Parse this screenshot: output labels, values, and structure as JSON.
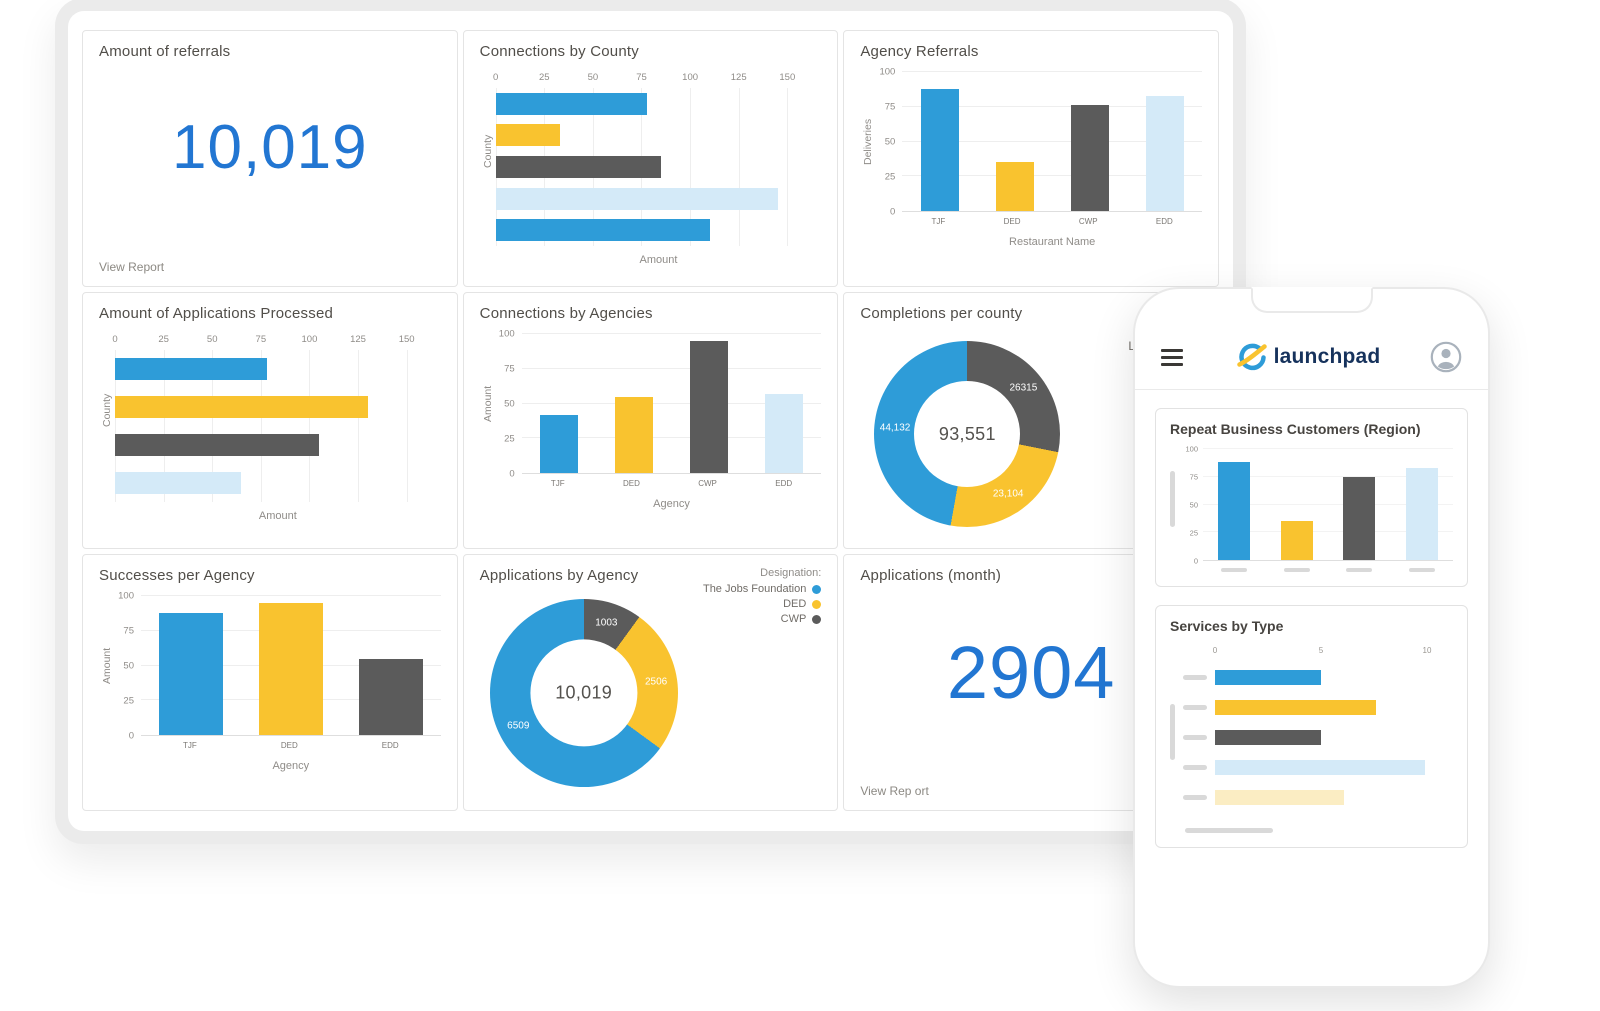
{
  "palette": {
    "blue": "#2E9CD8",
    "yellow": "#F9C32F",
    "gray": "#5B5B5B",
    "light_blue": "#D4EAF8",
    "light_yellow": "#FBEDC3",
    "metric_blue": "#2276D2",
    "brand_navy": "#16325C",
    "placeholder_gray": "#D9D9D9"
  },
  "dashboard": {
    "cards": {
      "referrals": {
        "title": "Amount of referrals",
        "value": "10,019",
        "link_label": "View Report"
      },
      "connections_by_county": {
        "title": "Connections by County",
        "chart": {
          "type": "hbar",
          "xlabel": "Amount",
          "ylabel": "County",
          "grid": true,
          "xticks": [
            0,
            25,
            50,
            75,
            100,
            125,
            150
          ],
          "xmax": 150,
          "bars": [
            {
              "value": 78,
              "color": "blue"
            },
            {
              "value": 33,
              "color": "yellow"
            },
            {
              "value": 85,
              "color": "gray"
            },
            {
              "value": 145,
              "color": "light_blue"
            },
            {
              "value": 110,
              "color": "blue"
            }
          ]
        }
      },
      "agency_referrals": {
        "title": "Agency Referrals",
        "chart": {
          "type": "vbar",
          "xlabel": "Restaurant Name",
          "ylabel": "Deliveries",
          "yticks": [
            0,
            25,
            50,
            75,
            100
          ],
          "ymax": 100,
          "bars": [
            {
              "label": "TJF",
              "value": 88,
              "color": "blue"
            },
            {
              "label": "DED",
              "value": 35,
              "color": "yellow"
            },
            {
              "label": "CWP",
              "value": 76,
              "color": "gray"
            },
            {
              "label": "EDD",
              "value": 83,
              "color": "light_blue"
            }
          ]
        }
      },
      "applications_processed": {
        "title": "Amount of Applications Processed",
        "chart": {
          "type": "hbar",
          "xlabel": "Amount",
          "ylabel": "County",
          "grid": true,
          "xticks": [
            0,
            25,
            50,
            75,
            100,
            125,
            150
          ],
          "xmax": 150,
          "bars": [
            {
              "value": 78,
              "color": "blue"
            },
            {
              "value": 130,
              "color": "yellow"
            },
            {
              "value": 105,
              "color": "gray"
            },
            {
              "value": 65,
              "color": "light_blue"
            }
          ]
        }
      },
      "connections_by_agencies": {
        "title": "Connections by Agencies",
        "chart": {
          "type": "vbar",
          "xlabel": "Agency",
          "ylabel": "Amount",
          "yticks": [
            0,
            25,
            50,
            75,
            100
          ],
          "ymax": 100,
          "bars": [
            {
              "label": "TJF",
              "value": 42,
              "color": "blue"
            },
            {
              "label": "DED",
              "value": 55,
              "color": "yellow"
            },
            {
              "label": "CWP",
              "value": 95,
              "color": "gray"
            },
            {
              "label": "EDD",
              "value": 57,
              "color": "light_blue"
            }
          ]
        }
      },
      "completions_per_county": {
        "title": "Completions per county",
        "partial_text": "L",
        "chart": {
          "type": "donut",
          "center": "93,551",
          "segments": [
            {
              "label": "26315",
              "value": 26315,
              "color": "gray"
            },
            {
              "label": "23,104",
              "value": 23104,
              "color": "yellow"
            },
            {
              "label": "44,132",
              "value": 44132,
              "color": "blue"
            }
          ]
        }
      },
      "successes_per_agency": {
        "title": "Successes per Agency",
        "chart": {
          "type": "vbar",
          "xlabel": "Agency",
          "ylabel": "Amount",
          "yticks": [
            0,
            25,
            50,
            75,
            100
          ],
          "ymax": 100,
          "bars": [
            {
              "label": "TJF",
              "value": 88,
              "color": "blue"
            },
            {
              "label": "DED",
              "value": 95,
              "color": "yellow"
            },
            {
              "label": "EDD",
              "value": 55,
              "color": "gray"
            }
          ]
        }
      },
      "applications_by_agency": {
        "title": "Applications by Agency",
        "legend": {
          "title": "Designation:",
          "items": [
            {
              "label": "The Jobs Foundation",
              "color": "blue"
            },
            {
              "label": "DED",
              "color": "yellow"
            },
            {
              "label": "CWP",
              "color": "gray"
            }
          ]
        },
        "chart": {
          "type": "donut",
          "center": "10,019",
          "segments": [
            {
              "label": "1003",
              "value": 1003,
              "color": "gray"
            },
            {
              "label": "2506",
              "value": 2506,
              "color": "yellow"
            },
            {
              "label": "6509",
              "value": 6509,
              "color": "blue"
            }
          ]
        }
      },
      "applications_month": {
        "title": "Applications (month)",
        "value": "2904",
        "link_label": "View Rep ort"
      }
    }
  },
  "phone": {
    "logo_text": "launchpad",
    "cards": [
      {
        "title": "Repeat Business Customers (Region)",
        "chart": {
          "type": "vbar",
          "yticks": [
            0,
            25,
            50,
            75,
            100
          ],
          "ymax": 100,
          "placeholder_labels": true,
          "placeholder_ylabel": true,
          "bars": [
            {
              "value": 88,
              "color": "blue"
            },
            {
              "value": 35,
              "color": "yellow"
            },
            {
              "value": 75,
              "color": "gray"
            },
            {
              "value": 83,
              "color": "light_blue"
            }
          ]
        }
      },
      {
        "title": "Services by Type",
        "chart": {
          "type": "hbar",
          "xticks": [
            0,
            5,
            10
          ],
          "xmax": 10,
          "grid": false,
          "placeholder_labels": true,
          "placeholder_ylabel": true,
          "placeholder_xlabel": true,
          "bars": [
            {
              "value": 5,
              "color": "blue"
            },
            {
              "value": 7.6,
              "color": "yellow"
            },
            {
              "value": 5,
              "color": "gray"
            },
            {
              "value": 9.9,
              "color": "light_blue"
            },
            {
              "value": 6.1,
              "color": "light_yellow"
            }
          ]
        }
      }
    ]
  }
}
